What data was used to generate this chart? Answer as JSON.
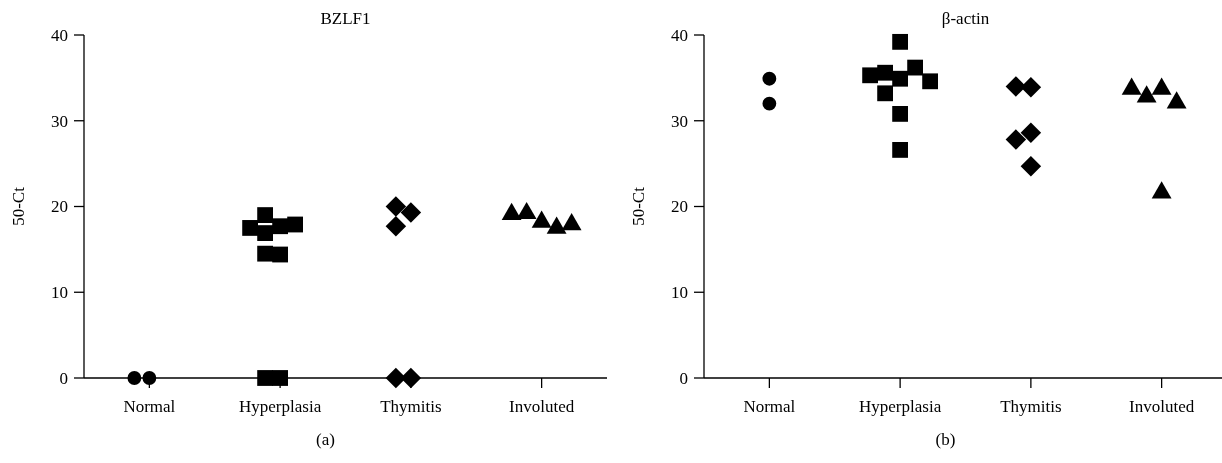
{
  "chart_data": [
    {
      "type": "scatter",
      "title": "BZLF1",
      "ylabel": "50-Ct",
      "annotations": [
        "(a)"
      ],
      "categories": [
        "Normal",
        "Hyperplasia",
        "Thymitis",
        "Involuted"
      ],
      "ylim": [
        0,
        40
      ],
      "yticks": [
        0,
        10,
        20,
        30,
        40
      ],
      "series": [
        {
          "color": "#000000",
          "marker": "circle",
          "x": [
            "Normal",
            "Normal"
          ],
          "values": [
            0,
            0
          ]
        },
        {
          "color": "#000000",
          "marker": "square",
          "x": [
            "Hyperplasia",
            "Hyperplasia",
            "Hyperplasia",
            "Hyperplasia",
            "Hyperplasia",
            "Hyperplasia",
            "Hyperplasia",
            "Hyperplasia",
            "Hyperplasia"
          ],
          "values": [
            17.7,
            19.0,
            16.9,
            17.9,
            17.5,
            14.4,
            14.5,
            0,
            0
          ]
        },
        {
          "color": "#000000",
          "marker": "diamond",
          "x": [
            "Thymitis",
            "Thymitis",
            "Thymitis",
            "Thymitis",
            "Thymitis"
          ],
          "values": [
            19.3,
            17.7,
            20.0,
            0,
            0
          ]
        },
        {
          "color": "#000000",
          "marker": "triangle",
          "x": [
            "Involuted",
            "Involuted",
            "Involuted",
            "Involuted",
            "Involuted"
          ],
          "values": [
            18.2,
            19.2,
            17.5,
            19.1,
            17.9
          ]
        }
      ]
    },
    {
      "type": "scatter",
      "title": "β-actin",
      "ylabel": "50-Ct",
      "annotations": [
        "(b)"
      ],
      "categories": [
        "Normal",
        "Hyperplasia",
        "Thymitis",
        "Involuted"
      ],
      "ylim": [
        0,
        40
      ],
      "yticks": [
        0,
        10,
        20,
        30,
        40
      ],
      "series": [
        {
          "color": "#000000",
          "marker": "circle",
          "x": [
            "Normal",
            "Normal"
          ],
          "values": [
            34.9,
            32.0
          ]
        },
        {
          "color": "#000000",
          "marker": "square",
          "x": [
            "Hyperplasia",
            "Hyperplasia",
            "Hyperplasia",
            "Hyperplasia",
            "Hyperplasia",
            "Hyperplasia",
            "Hyperplasia",
            "Hyperplasia",
            "Hyperplasia"
          ],
          "values": [
            39.2,
            34.9,
            35.6,
            36.2,
            35.3,
            34.6,
            33.2,
            30.8,
            26.6
          ]
        },
        {
          "color": "#000000",
          "marker": "diamond",
          "x": [
            "Thymitis",
            "Thymitis",
            "Thymitis",
            "Thymitis",
            "Thymitis"
          ],
          "values": [
            33.9,
            34.0,
            28.6,
            27.8,
            24.7
          ]
        },
        {
          "color": "#000000",
          "marker": "triangle",
          "x": [
            "Involuted",
            "Involuted",
            "Involuted",
            "Involuted",
            "Involuted"
          ],
          "values": [
            33.7,
            32.8,
            32.1,
            33.7,
            21.6
          ]
        }
      ]
    }
  ]
}
